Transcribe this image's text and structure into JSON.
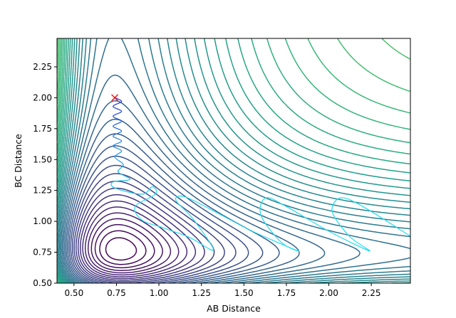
{
  "chart_data": {
    "type": "contour",
    "xlabel": "AB Distance",
    "ylabel": "BC Distance",
    "xlim": [
      0.4,
      2.48
    ],
    "ylim": [
      0.5,
      2.48
    ],
    "xticks": [
      0.5,
      0.75,
      1.0,
      1.25,
      1.5,
      1.75,
      2.0,
      2.25
    ],
    "yticks": [
      0.5,
      0.75,
      1.0,
      1.25,
      1.5,
      1.75,
      2.0,
      2.25
    ],
    "xtick_labels": [
      "0.50",
      "0.75",
      "1.00",
      "1.25",
      "1.50",
      "1.75",
      "2.00",
      "2.25"
    ],
    "ytick_labels": [
      "0.50",
      "0.75",
      "1.00",
      "1.25",
      "1.50",
      "1.75",
      "2.00",
      "2.25"
    ],
    "colormap": "viridis",
    "contour_levels": 50,
    "start_marker": {
      "x": 0.74,
      "y": 2.0,
      "symbol": "x",
      "color": "#ff0000"
    },
    "trajectory": {
      "color_start": "#2233cc",
      "color_end": "#22ddee",
      "points": [
        [
          0.74,
          2.0
        ],
        [
          0.78,
          1.97
        ],
        [
          0.73,
          1.93
        ],
        [
          0.78,
          1.89
        ],
        [
          0.73,
          1.85
        ],
        [
          0.78,
          1.81
        ],
        [
          0.73,
          1.77
        ],
        [
          0.78,
          1.73
        ],
        [
          0.73,
          1.69
        ],
        [
          0.78,
          1.65
        ],
        [
          0.73,
          1.61
        ],
        [
          0.78,
          1.57
        ],
        [
          0.74,
          1.52
        ],
        [
          0.79,
          1.46
        ],
        [
          0.76,
          1.4
        ],
        [
          0.83,
          1.34
        ],
        [
          0.73,
          1.32
        ],
        [
          0.74,
          1.27
        ],
        [
          0.9,
          1.22
        ],
        [
          0.96,
          1.28
        ],
        [
          0.98,
          1.22
        ],
        [
          0.86,
          1.12
        ],
        [
          0.9,
          1.01
        ],
        [
          1.02,
          0.95
        ],
        [
          1.18,
          0.87
        ],
        [
          1.32,
          0.77
        ],
        [
          1.2,
          1.02
        ],
        [
          1.1,
          1.17
        ],
        [
          1.15,
          1.2
        ],
        [
          1.3,
          1.1
        ],
        [
          1.55,
          0.92
        ],
        [
          1.82,
          0.76
        ],
        [
          1.72,
          0.83
        ],
        [
          1.6,
          1.05
        ],
        [
          1.63,
          1.19
        ],
        [
          1.75,
          1.12
        ],
        [
          2.0,
          0.92
        ],
        [
          2.24,
          0.76
        ],
        [
          2.12,
          0.88
        ],
        [
          2.02,
          1.08
        ],
        [
          2.07,
          1.19
        ],
        [
          2.2,
          1.12
        ],
        [
          2.48,
          0.88
        ]
      ]
    }
  }
}
